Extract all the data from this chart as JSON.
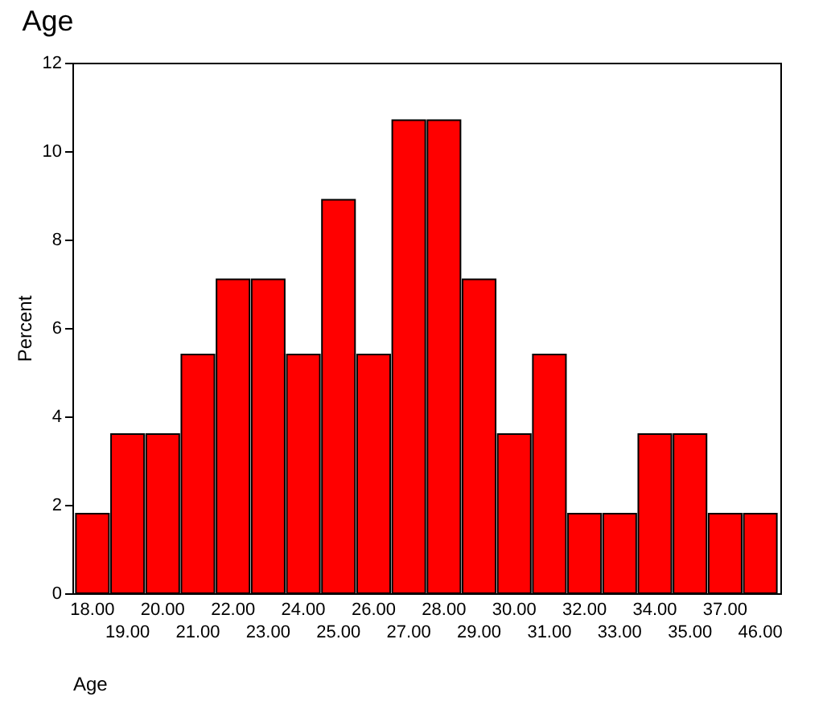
{
  "chart_data": {
    "type": "bar",
    "title": "Age",
    "xlabel": "Age",
    "ylabel": "Percent",
    "categories": [
      "18.00",
      "19.00",
      "20.00",
      "21.00",
      "22.00",
      "23.00",
      "24.00",
      "25.00",
      "26.00",
      "27.00",
      "28.00",
      "29.00",
      "30.00",
      "31.00",
      "32.00",
      "33.00",
      "34.00",
      "35.00",
      "37.00",
      "46.00"
    ],
    "values": [
      1.8,
      3.6,
      3.6,
      5.4,
      7.1,
      7.1,
      5.4,
      8.9,
      5.4,
      10.7,
      10.7,
      7.1,
      3.6,
      5.4,
      1.8,
      1.8,
      3.6,
      3.6,
      1.8,
      1.8
    ],
    "color": "#ff0000",
    "ylim": [
      0,
      12
    ],
    "yticks": [
      0,
      2,
      4,
      6,
      8,
      10,
      12
    ],
    "grid": false
  }
}
